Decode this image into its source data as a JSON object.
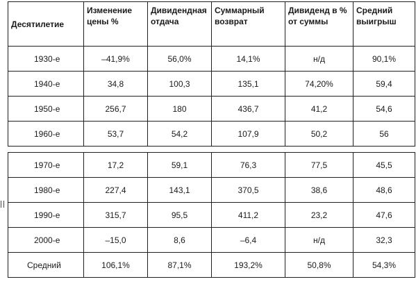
{
  "header": {
    "decade": "Десятилетие",
    "price_change_1": "Изменение",
    "price_change_2": "цены %",
    "dividend_yield_1": "Дивидендная",
    "dividend_yield_2": "отдача",
    "total_return_1": "Суммарный",
    "total_return_2": "возврат",
    "dividend_share_1": "Дивиденд в %",
    "dividend_share_2": "от суммы",
    "avg_gain_1": "Средний",
    "avg_gain_2": "выигрыш"
  },
  "rows": [
    {
      "decade": "1930-е",
      "price_change": "–41,9%",
      "dividend_yield": "56,0%",
      "total_return": "14,1%",
      "dividend_share": "н/д",
      "avg_gain": "90,1%"
    },
    {
      "decade": "1940-е",
      "price_change": "34,8",
      "dividend_yield": "100,3",
      "total_return": "135,1",
      "dividend_share": "74,20%",
      "avg_gain": "59,4"
    },
    {
      "decade": "1950-е",
      "price_change": "256,7",
      "dividend_yield": "180",
      "total_return": "436,7",
      "dividend_share": "41,2",
      "avg_gain": "54,6"
    },
    {
      "decade": "1960-е",
      "price_change": "53,7",
      "dividend_yield": "54,2",
      "total_return": "107,9",
      "dividend_share": "50,2",
      "avg_gain": "56"
    },
    {
      "decade": "1970-е",
      "price_change": "17,2",
      "dividend_yield": "59,1",
      "total_return": "76,3",
      "dividend_share": "77,5",
      "avg_gain": "45,5"
    },
    {
      "decade": "1980-е",
      "price_change": "227,4",
      "dividend_yield": "143,1",
      "total_return": "370,5",
      "dividend_share": "38,6",
      "avg_gain": "48,6"
    },
    {
      "decade": "1990-е",
      "price_change": "315,7",
      "dividend_yield": "95,5",
      "total_return": "411,2",
      "dividend_share": "23,2",
      "avg_gain": "47,6"
    },
    {
      "decade": "2000-е",
      "price_change": "–15,0",
      "dividend_yield": "8,6",
      "total_return": "–6,4",
      "dividend_share": "н/д",
      "avg_gain": "32,3"
    },
    {
      "decade": "Средний",
      "price_change": "106,1%",
      "dividend_yield": "87,1%",
      "total_return": "193,2%",
      "dividend_share": "50,8%",
      "avg_gain": "54,3%"
    }
  ]
}
